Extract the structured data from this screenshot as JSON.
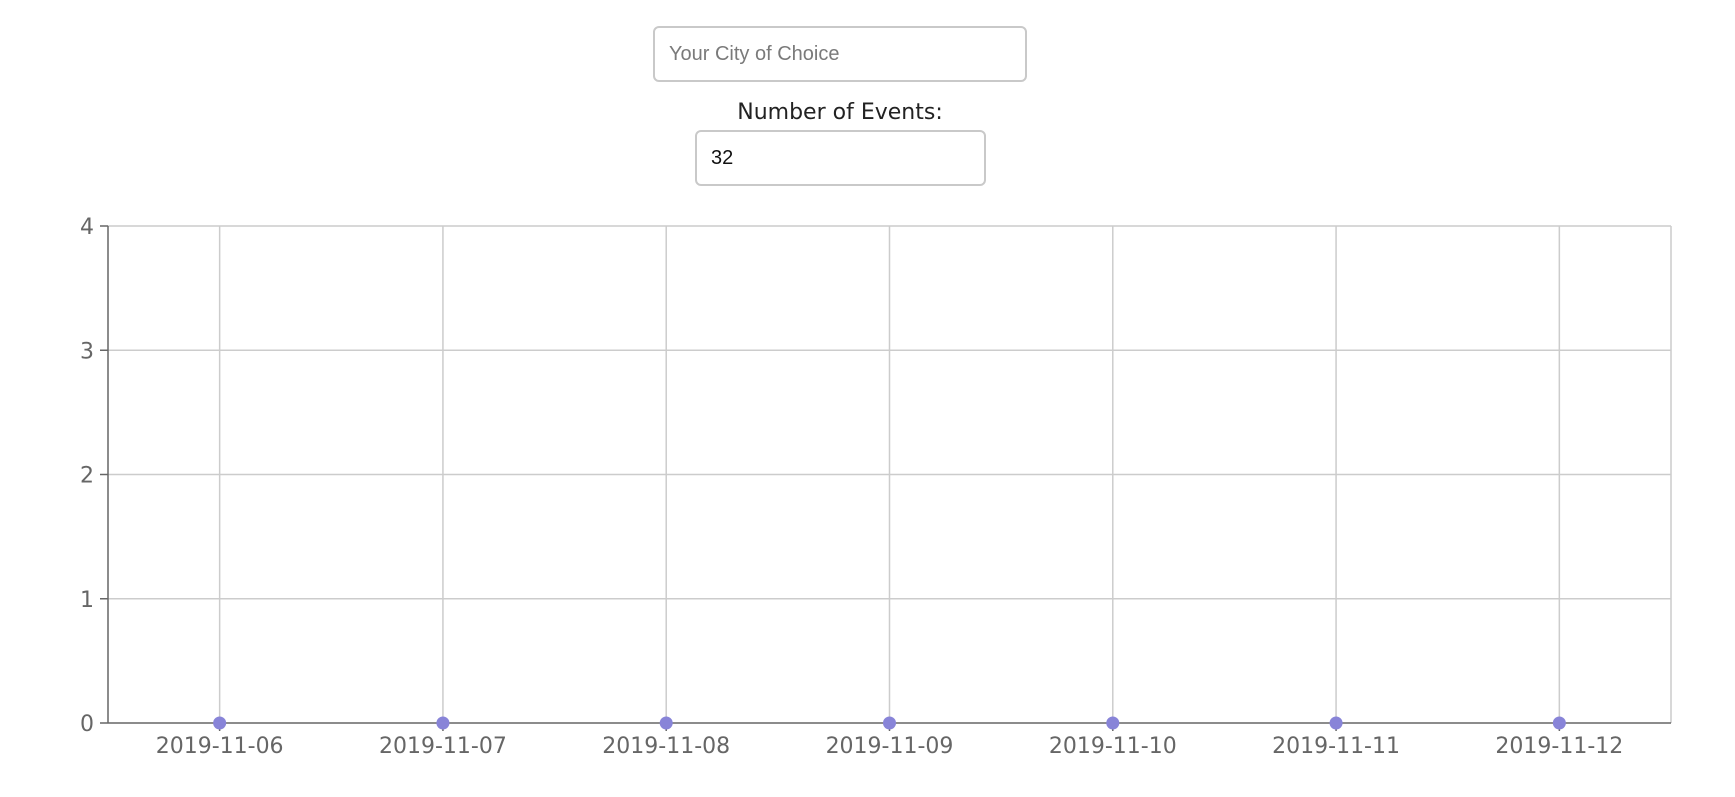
{
  "city_search": {
    "placeholder": "Your City of Choice",
    "value": ""
  },
  "number_of_events": {
    "label": "Number of Events:",
    "value": "32"
  },
  "chart_data": {
    "type": "scatter",
    "title": "",
    "xlabel": "",
    "ylabel": "",
    "x": [
      "2019-11-06",
      "2019-11-07",
      "2019-11-08",
      "2019-11-09",
      "2019-11-10",
      "2019-11-11",
      "2019-11-12"
    ],
    "series": [
      {
        "values": [
          0,
          0,
          0,
          0,
          0,
          0,
          0
        ]
      }
    ],
    "ylim": [
      0,
      4
    ],
    "yticks": [
      "0",
      "1",
      "2",
      "3",
      "4"
    ],
    "grid": true,
    "point_color": "#8884d8",
    "grid_color": "#cccccc",
    "axis_color": "#666666"
  }
}
